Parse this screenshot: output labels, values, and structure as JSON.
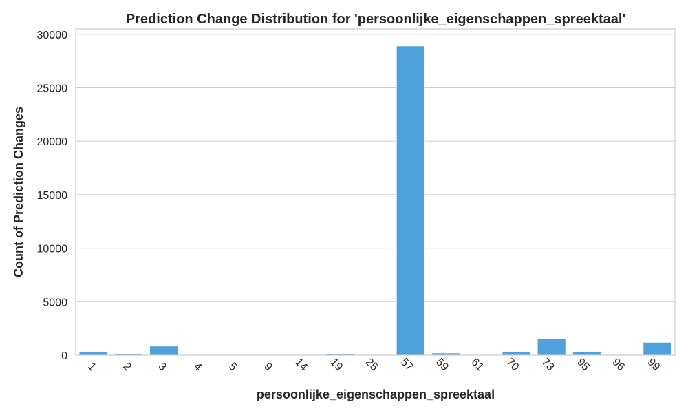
{
  "chart_data": {
    "type": "bar",
    "title": "Prediction Change Distribution for 'persoonlijke_eigenschappen_spreektaal'",
    "xlabel": "persoonlijke_eigenschappen_spreektaal",
    "ylabel": "Count of Prediction Changes",
    "categories": [
      "1",
      "2",
      "3",
      "4",
      "5",
      "9",
      "14",
      "19",
      "25",
      "57",
      "59",
      "61",
      "70",
      "73",
      "95",
      "96",
      "99"
    ],
    "values": [
      350,
      150,
      850,
      30,
      15,
      40,
      20,
      150,
      50,
      28900,
      200,
      25,
      350,
      1550,
      350,
      20,
      1200
    ],
    "ylim": [
      0,
      30500
    ],
    "yticks": [
      0,
      5000,
      10000,
      15000,
      20000,
      25000,
      30000
    ],
    "bar_color": "#4ea1dc",
    "grid": true,
    "xtick_rotation": 45
  }
}
